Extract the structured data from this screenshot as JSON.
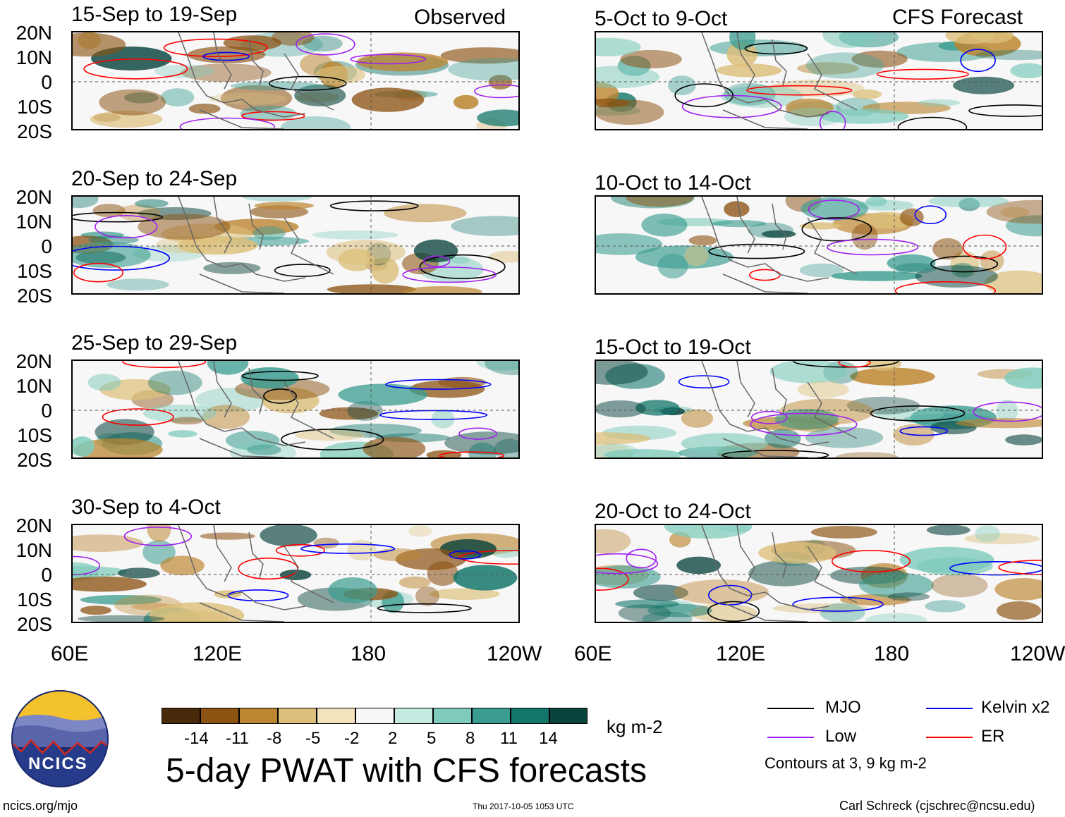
{
  "columns": {
    "left": "Observed",
    "right": "CFS Forecast"
  },
  "panels": {
    "observed": [
      {
        "title": "15-Sep to 19-Sep"
      },
      {
        "title": "20-Sep to 24-Sep"
      },
      {
        "title": "25-Sep to 29-Sep"
      },
      {
        "title": "30-Sep to 4-Oct"
      }
    ],
    "forecast": [
      {
        "title": "5-Oct to 9-Oct"
      },
      {
        "title": "10-Oct to 14-Oct"
      },
      {
        "title": "15-Oct to 19-Oct"
      },
      {
        "title": "20-Oct to 24-Oct"
      }
    ]
  },
  "latitude_labels": [
    "20N",
    "10N",
    "0",
    "10S",
    "20S"
  ],
  "longitude_labels": [
    "60E",
    "120E",
    "180",
    "120W"
  ],
  "colorbar": {
    "ticks": [
      "-14",
      "-11",
      "-8",
      "-5",
      "-2",
      "2",
      "5",
      "8",
      "11",
      "14"
    ],
    "units": "kg m-2",
    "colors": [
      "#4a2a0c",
      "#8c5212",
      "#bc8530",
      "#dcbf7a",
      "#f2e3bc",
      "#f7f7f7",
      "#c3ebe1",
      "#7ecbbb",
      "#3a9c90",
      "#12766a",
      "#08433c"
    ]
  },
  "legend": {
    "items": [
      {
        "label": "MJO",
        "color": "#000000"
      },
      {
        "label": "Kelvin x2",
        "color": "#0000ff"
      },
      {
        "label": "Low",
        "color": "#a020f0"
      },
      {
        "label": "ER",
        "color": "#ff0000"
      }
    ],
    "note": "Contours at 3, 9 kg m-2"
  },
  "title": "5-day PWAT with CFS forecasts",
  "logo_text": "NCICS",
  "footer": {
    "left": "ncics.org/mjo",
    "center": "Thu 2017-10-05 1053 UTC",
    "right": "Carl Schreck (cjschrec@ncsu.edu)"
  }
}
